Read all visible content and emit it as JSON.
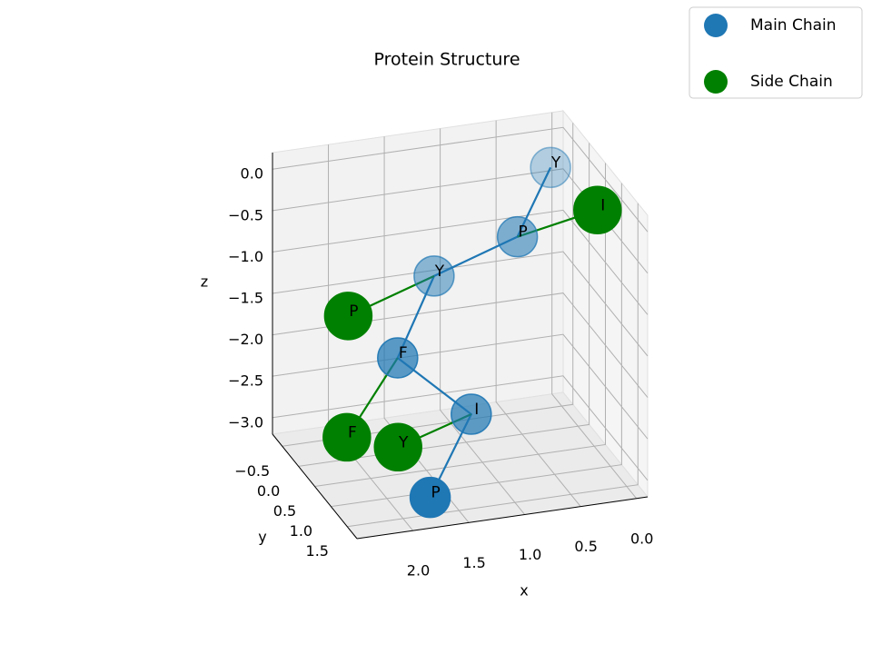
{
  "chart_data": {
    "type": "scatter3d",
    "title": "Protein Structure",
    "xlabel": "x",
    "ylabel": "y",
    "zlabel": "z",
    "xlim": [
      -0.1,
      2.5
    ],
    "ylim": [
      -0.8,
      1.8
    ],
    "zlim": [
      -3.2,
      0.2
    ],
    "xticks": [
      {
        "value": 0,
        "label": "0.0"
      },
      {
        "value": 0.5,
        "label": "0.5"
      },
      {
        "value": 1,
        "label": "1.0"
      },
      {
        "value": 1.5,
        "label": "1.5"
      },
      {
        "value": 2,
        "label": "2.0"
      }
    ],
    "yticks": [
      {
        "value": -0.5,
        "label": "−0.5"
      },
      {
        "value": 0,
        "label": "0.0"
      },
      {
        "value": 0.5,
        "label": "0.5"
      },
      {
        "value": 1,
        "label": "1.0"
      },
      {
        "value": 1.5,
        "label": "1.5"
      }
    ],
    "zticks": [
      {
        "value": 0,
        "label": "0.0"
      },
      {
        "value": -0.5,
        "label": "−0.5"
      },
      {
        "value": -1,
        "label": "−1.0"
      },
      {
        "value": -1.5,
        "label": "−1.5"
      },
      {
        "value": -2,
        "label": "−2.0"
      },
      {
        "value": -2.5,
        "label": "−2.5"
      },
      {
        "value": -3,
        "label": "−3.0"
      }
    ],
    "grid": true,
    "legend": "upper right",
    "series": [
      {
        "name": "Main Chain",
        "color": "#1f77b4",
        "depthshade": true,
        "labels": [
          "P",
          "I",
          "F",
          "Y",
          "P",
          "Y"
        ],
        "x": [
          1.7,
          1.1,
          1.7,
          1.2,
          0.6,
          0.1
        ],
        "y": [
          1.3,
          0.5,
          0.3,
          -0.3,
          0.2,
          -0.5
        ],
        "z": [
          -3.1,
          -2.6,
          -1.9,
          -1.3,
          -0.7,
          -0.3
        ]
      },
      {
        "name": "Side Chain",
        "color": "green",
        "depthshade": false,
        "labels": [
          "Y",
          "F",
          "P",
          "I"
        ],
        "attached_to": [
          1,
          2,
          3,
          4
        ],
        "x": [
          1.9,
          2.3,
          2.2,
          0.0
        ],
        "y": [
          1.0,
          0.8,
          0.5,
          0.6
        ],
        "z": [
          -2.6,
          -2.5,
          -1.2,
          -0.3
        ]
      }
    ]
  }
}
